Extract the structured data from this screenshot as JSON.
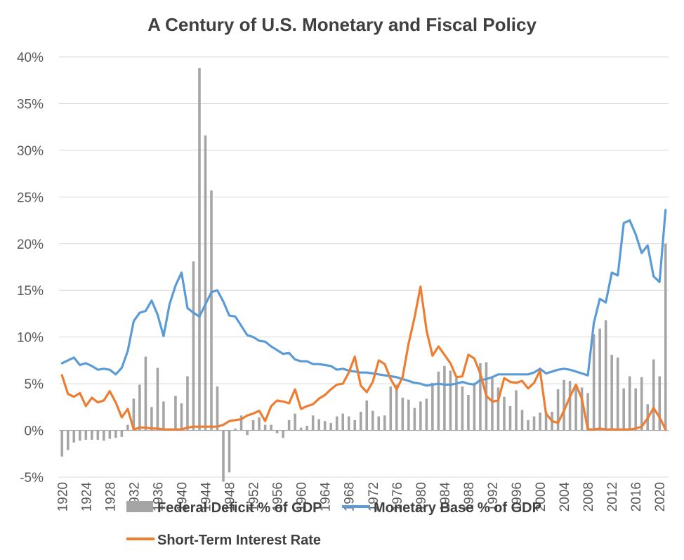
{
  "chart_data": {
    "type": "bar+line",
    "title": "A Century of U.S. Monetary and Fiscal Policy",
    "xlabel": "",
    "ylabel": "",
    "ylim": [
      -5,
      40
    ],
    "y_ticks": [
      -5,
      0,
      5,
      10,
      15,
      20,
      25,
      30,
      35,
      40
    ],
    "y_tick_suffix": "%",
    "x_start": 1920,
    "x_end": 2020,
    "x_tick_labels": [
      1920,
      1924,
      1928,
      1932,
      1936,
      1940,
      1944,
      1948,
      1952,
      1956,
      1960,
      1964,
      1968,
      1972,
      1976,
      1980,
      1984,
      1988,
      1992,
      1996,
      2000,
      2004,
      2008,
      2012,
      2016,
      2020
    ],
    "grid": true,
    "legend_position": "bottom",
    "colors": {
      "deficit": "#a5a5a5",
      "base": "#5b9bd5",
      "rate": "#ed7d31",
      "grid": "#d9d9d9",
      "zero": "#a6a6a6"
    },
    "series": [
      {
        "name": "Federal Deficit % of GDP",
        "kind": "bar",
        "values": [
          -2.8,
          -2.1,
          -1.3,
          -1.1,
          -1.0,
          -1.0,
          -1.0,
          -1.1,
          -0.9,
          -0.8,
          -0.7,
          0.6,
          3.4,
          4.9,
          7.9,
          2.5,
          6.7,
          3.1,
          0.1,
          3.7,
          2.9,
          5.8,
          18.1,
          38.8,
          31.6,
          25.7,
          4.7,
          -5.5,
          -4.5,
          0.2,
          1.6,
          -0.5,
          1.1,
          1.4,
          0.6,
          0.6,
          -0.3,
          -0.8,
          1.1,
          1.8,
          0.3,
          0.5,
          1.6,
          1.2,
          1.0,
          0.8,
          1.5,
          1.8,
          1.5,
          1.1,
          2.0,
          3.2,
          2.1,
          1.5,
          1.6,
          4.7,
          4.9,
          3.5,
          3.3,
          2.4,
          3.1,
          3.4,
          5.1,
          6.3,
          6.9,
          6.4,
          5.6,
          4.7,
          3.8,
          5.1,
          7.2,
          7.3,
          5.6,
          4.6,
          3.6,
          2.6,
          4.3,
          2.2,
          1.1,
          1.5,
          1.9,
          2.0,
          2.0,
          4.4,
          5.4,
          5.3,
          4.8,
          4.6,
          4.0,
          10.3,
          10.9,
          11.8,
          8.1,
          7.8,
          4.5,
          5.8,
          4.5,
          5.7,
          2.8,
          7.6,
          5.8,
          20.0
        ]
      },
      {
        "name": "Monetary Base % of GDP",
        "kind": "line",
        "values": [
          7.2,
          7.5,
          7.8,
          7.0,
          7.2,
          6.9,
          6.5,
          6.6,
          6.5,
          6.0,
          6.7,
          8.5,
          11.7,
          12.6,
          12.8,
          13.9,
          12.4,
          10.1,
          13.5,
          15.5,
          16.9,
          13.1,
          12.6,
          12.2,
          13.5,
          14.8,
          15.0,
          13.8,
          12.3,
          12.2,
          11.2,
          10.2,
          10.0,
          9.6,
          9.5,
          9.0,
          8.6,
          8.2,
          8.3,
          7.6,
          7.4,
          7.4,
          7.1,
          7.1,
          7.0,
          6.9,
          6.5,
          6.6,
          6.4,
          6.3,
          6.2,
          6.2,
          6.1,
          6.0,
          5.9,
          5.8,
          5.7,
          5.5,
          5.3,
          5.1,
          5.0,
          4.8,
          4.9,
          5.0,
          4.9,
          4.9,
          5.0,
          5.2,
          5.0,
          4.9,
          5.4,
          5.5,
          5.7,
          6.0,
          6.0,
          6.0,
          6.0,
          6.0,
          6.0,
          6.2,
          6.6,
          6.1,
          6.3,
          6.5,
          6.6,
          6.5,
          6.3,
          6.1,
          5.9,
          11.5,
          14.1,
          13.7,
          16.9,
          16.6,
          22.2,
          22.5,
          21.0,
          19.0,
          19.8,
          16.5,
          15.9,
          23.6
        ]
      },
      {
        "name": "Short-Term Interest Rate",
        "kind": "line",
        "values": [
          5.9,
          3.9,
          3.6,
          4.0,
          2.6,
          3.5,
          3.0,
          3.2,
          4.2,
          3.0,
          1.4,
          2.3,
          0.1,
          0.3,
          0.3,
          0.2,
          0.2,
          0.1,
          0.1,
          0.1,
          0.1,
          0.3,
          0.4,
          0.4,
          0.4,
          0.4,
          0.4,
          0.6,
          1.0,
          1.1,
          1.2,
          1.6,
          1.8,
          2.1,
          1.0,
          2.6,
          3.2,
          3.1,
          2.9,
          4.4,
          2.3,
          2.6,
          2.8,
          3.4,
          3.8,
          4.4,
          4.9,
          5.0,
          6.2,
          7.9,
          4.8,
          4.1,
          5.2,
          7.5,
          7.1,
          5.5,
          4.4,
          5.7,
          9.3,
          12.1,
          15.4,
          10.7,
          8.0,
          9.0,
          8.1,
          7.2,
          5.7,
          5.8,
          8.1,
          7.7,
          6.1,
          3.7,
          3.1,
          3.2,
          5.6,
          5.2,
          5.1,
          5.3,
          4.5,
          5.1,
          6.4,
          1.8,
          1.0,
          0.8,
          2.1,
          3.6,
          4.9,
          3.4,
          0.1,
          0.1,
          0.2,
          0.1,
          0.1,
          0.1,
          0.1,
          0.1,
          0.2,
          0.4,
          1.3,
          2.4,
          1.4,
          0.1
        ]
      }
    ]
  }
}
